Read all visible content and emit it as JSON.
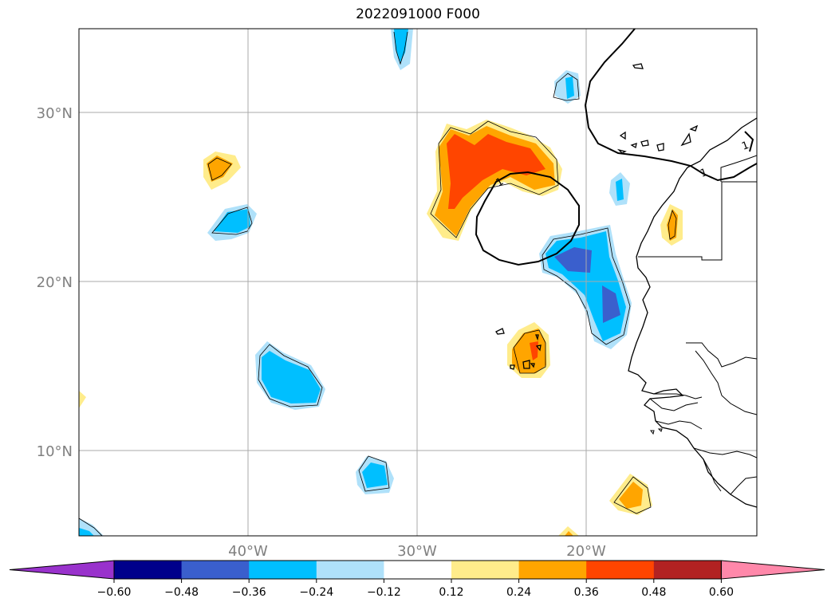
{
  "title": "2022091000 F000",
  "map": {
    "lat_labels": [
      "30°N",
      "20°N",
      "10°N"
    ],
    "lon_labels": [
      "40°W",
      "30°W",
      "20°W"
    ],
    "contour_label": "1"
  },
  "colorbar": {
    "ticks": [
      "−0.60",
      "−0.48",
      "−0.36",
      "−0.24",
      "−0.12",
      "0.12",
      "0.24",
      "0.36",
      "0.48",
      "0.60"
    ],
    "colors": [
      "#9932cc",
      "#00008b",
      "#3a5fcd",
      "#00bfff",
      "#afe1fa",
      "#ffffff",
      "#ffec8b",
      "#ffa500",
      "#ff4500",
      "#b22222",
      "#ff88aa"
    ],
    "extend": "both"
  }
}
